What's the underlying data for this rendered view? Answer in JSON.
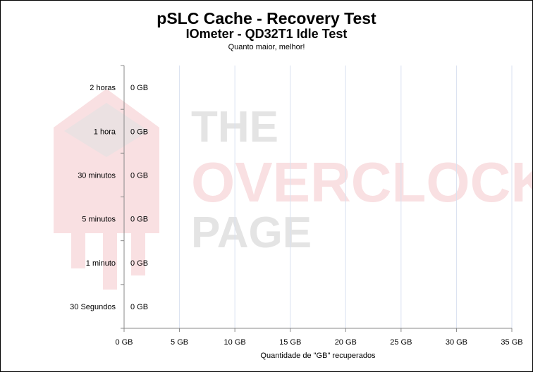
{
  "chart_data": {
    "type": "bar",
    "orientation": "horizontal",
    "title": "pSLC Cache - Recovery Test",
    "subtitle": "IOmeter - QD32T1 Idle Test",
    "note": "Quanto maior, melhor!",
    "xlabel": "Quantidade de \"GB\" recuperados",
    "ylabel": "",
    "categories": [
      "2 horas",
      "1 hora",
      "30 minutos",
      "5 minutos",
      "1 minuto",
      "30 Segundos"
    ],
    "values": [
      0,
      0,
      0,
      0,
      0,
      0
    ],
    "data_labels": [
      "0 GB",
      "0 GB",
      "0 GB",
      "0 GB",
      "0 GB",
      "0 GB"
    ],
    "xlim": [
      0,
      35
    ],
    "xticks": [
      0,
      5,
      10,
      15,
      20,
      25,
      30,
      35
    ],
    "xtick_labels": [
      "0 GB",
      "5 GB",
      "10 GB",
      "15 GB",
      "20 GB",
      "25 GB",
      "30 GB",
      "35 GB"
    ],
    "grid": "vertical",
    "gridline_color": "#d9e1f0",
    "legend": "none"
  },
  "watermark": {
    "line1": "THE",
    "line2": "OVERCLOCK",
    "line3": "PAGE"
  }
}
